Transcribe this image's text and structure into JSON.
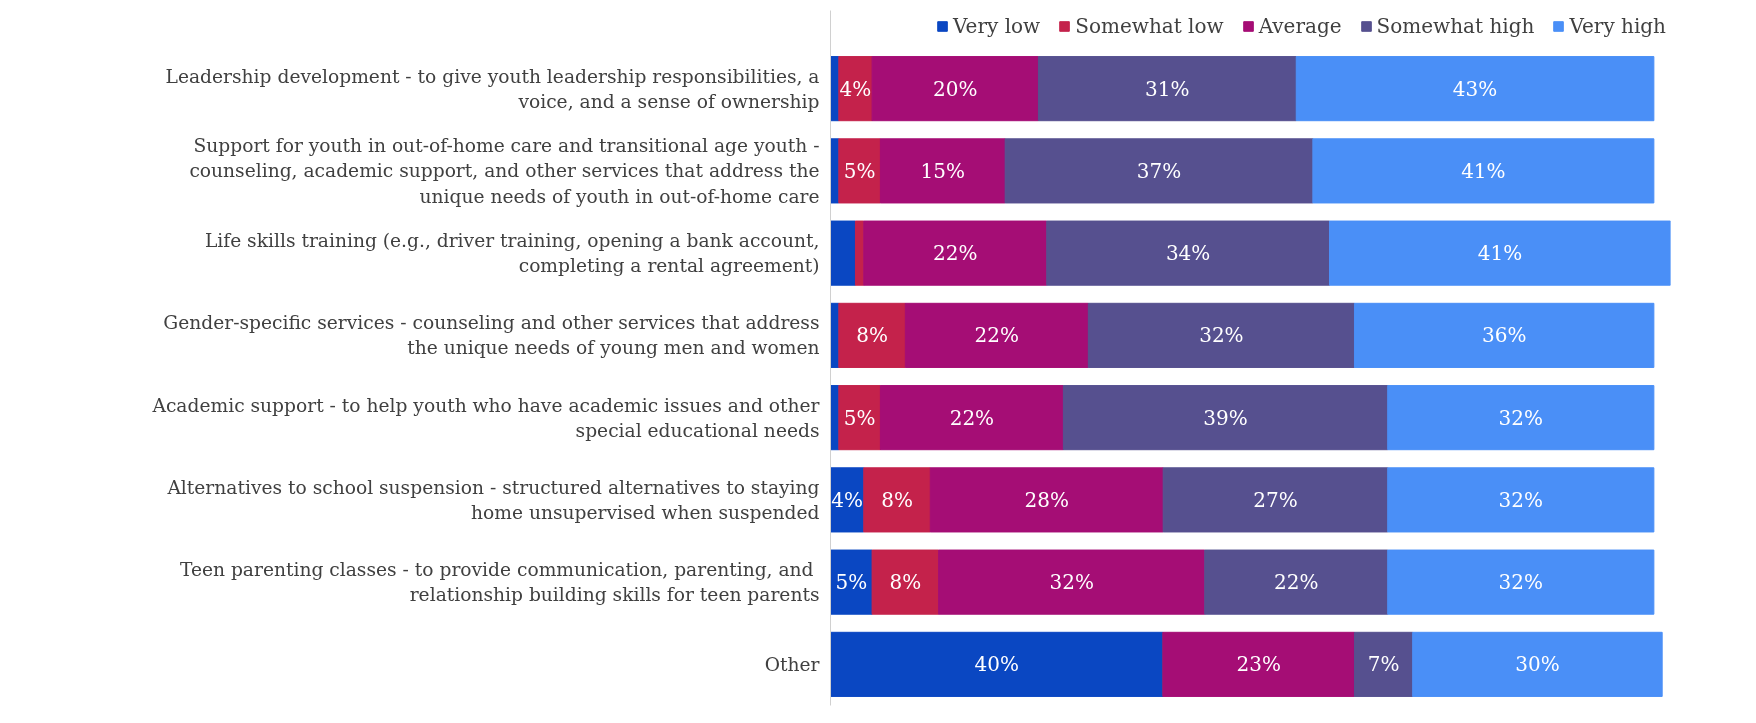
{
  "chart_data": {
    "type": "bar",
    "orientation": "horizontal",
    "stacked": true,
    "legend": "top",
    "grid": false,
    "tick_labels": "y",
    "categories": [
      "Leadership development - to give youth leadership responsibilities, a voice, and a sense of ownership",
      "Support for youth in out-of-home care and transitional age youth - counseling, academic support, and other services that address the unique needs of youth in out-of-home care",
      "Life skills training (e.g., driver training, opening a bank account, completing a rental agreement)",
      "Gender-specific services - counseling and other services that address the unique needs of young men and women",
      "Academic support - to help youth who have academic issues and other special educational needs",
      "Alternatives to school suspension - structured alternatives to staying home unsupervised when suspended",
      "Teen parenting classes  - to provide communication, parenting, and relationship building skills for teen parents",
      "Other"
    ],
    "series": [
      {
        "name": "Very low",
        "color": "#0a47c2",
        "values": [
          1,
          1,
          3,
          1,
          1,
          4,
          5,
          40
        ],
        "value_labels": [
          null,
          null,
          null,
          null,
          null,
          "4%",
          "5%",
          "40%"
        ]
      },
      {
        "name": "Somewhat low",
        "color": "#c4224b",
        "values": [
          4,
          5,
          1,
          8,
          5,
          8,
          8,
          0
        ],
        "value_labels": [
          "4%",
          "5%",
          null,
          "8%",
          "5%",
          "8%",
          "8%",
          null
        ]
      },
      {
        "name": "Average",
        "color": "#a50d75",
        "values": [
          20,
          15,
          22,
          22,
          22,
          28,
          32,
          23
        ],
        "value_labels": [
          "20%",
          "15%",
          "22%",
          "22%",
          "22%",
          "28%",
          "32%",
          "23%"
        ]
      },
      {
        "name": "Somewhat high",
        "color": "#56508f",
        "values": [
          31,
          37,
          34,
          32,
          39,
          27,
          22,
          7
        ],
        "value_labels": [
          "31%",
          "37%",
          "34%",
          "32%",
          "39%",
          "27%",
          "22%",
          "7%"
        ]
      },
      {
        "name": "Very high",
        "color": "#4a8ff7",
        "values": [
          43,
          41,
          41,
          36,
          32,
          32,
          32,
          30
        ],
        "value_labels": [
          "43%",
          "41%",
          "41%",
          "36%",
          "32%",
          "32%",
          "32%",
          "30%"
        ]
      }
    ]
  }
}
